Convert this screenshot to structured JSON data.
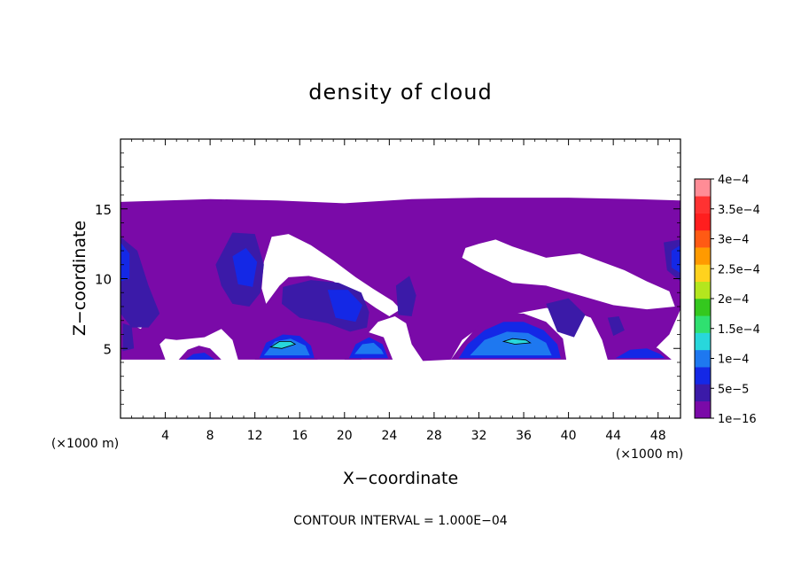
{
  "chart_data": {
    "type": "heatmap",
    "title": "density of cloud",
    "xlabel": "X−coordinate",
    "ylabel": "Z−coordinate",
    "x_unit_left": "(×1000 m)",
    "x_unit_right": "(×1000 m)",
    "footer": "CONTOUR INTERVAL = 1.000E−04",
    "xlim": [
      0,
      50
    ],
    "ylim": [
      0,
      20
    ],
    "x_ticks": [
      4,
      8,
      12,
      16,
      20,
      24,
      28,
      32,
      36,
      40,
      44,
      48
    ],
    "x_tick_labels": [
      "4",
      "8",
      "12",
      "16",
      "20",
      "24",
      "28",
      "32",
      "36",
      "40",
      "44",
      "48"
    ],
    "y_ticks": [
      5,
      10,
      15
    ],
    "y_tick_labels": [
      "5",
      "10",
      "15"
    ],
    "grid": false,
    "colorbar": {
      "placement": "right",
      "levels": [
        1e-16,
        5e-05,
        0.0001,
        0.00015,
        0.0002,
        0.00025,
        0.0003,
        0.00035,
        0.0004
      ],
      "labels": [
        "1e−16",
        "5e−5",
        "1e−4",
        "1.5e−4",
        "2e−4",
        "2.5e−4",
        "3e−4",
        "3.5e−4",
        "4e−4"
      ],
      "colors": [
        "#7a0aa8",
        "#3b1aa8",
        "#1428e6",
        "#1e78f0",
        "#28d7dc",
        "#2fe070",
        "#34c81e",
        "#b4e61e",
        "#ffd21e",
        "#ff9a00",
        "#ff5a14",
        "#ff1e1e",
        "#ff3232",
        "#ff8c96"
      ]
    },
    "regions": [
      {
        "name": "cloud-layer",
        "level": 1,
        "points": [
          [
            0,
            15.5
          ],
          [
            8,
            15.7
          ],
          [
            14,
            15.6
          ],
          [
            20,
            15.4
          ],
          [
            26,
            15.7
          ],
          [
            32,
            15.8
          ],
          [
            40,
            15.8
          ],
          [
            46,
            15.7
          ],
          [
            50,
            15.6
          ],
          [
            50,
            7.8
          ],
          [
            49,
            6
          ],
          [
            48,
            5.2
          ],
          [
            47,
            4.3
          ],
          [
            43.5,
            4.2
          ],
          [
            43,
            5.6
          ],
          [
            42,
            7.2
          ],
          [
            40,
            7.8
          ],
          [
            38,
            7.9
          ],
          [
            36,
            7.6
          ],
          [
            34,
            7.2
          ],
          [
            32,
            6.5
          ],
          [
            30.5,
            5.6
          ],
          [
            29.5,
            4.2
          ],
          [
            27,
            4.1
          ],
          [
            26,
            5.3
          ],
          [
            25.5,
            6.8
          ],
          [
            24.5,
            7.3
          ],
          [
            23,
            6.9
          ],
          [
            22,
            6
          ],
          [
            21.5,
            4.2
          ],
          [
            10.5,
            4.2
          ],
          [
            10,
            5.6
          ],
          [
            9,
            6.4
          ],
          [
            7.5,
            5.8
          ],
          [
            5,
            5.6
          ],
          [
            4,
            5.7
          ],
          [
            3.5,
            5.3
          ],
          [
            4,
            4.2
          ],
          [
            0,
            4.2
          ]
        ]
      },
      {
        "name": "clear-gap",
        "level": 0,
        "points": [
          [
            13.5,
            13
          ],
          [
            15,
            13.2
          ],
          [
            17,
            12.4
          ],
          [
            19,
            11.3
          ],
          [
            21,
            10.1
          ],
          [
            22.5,
            9.3
          ],
          [
            24.3,
            8.4
          ],
          [
            25,
            7.8
          ],
          [
            24,
            7.3
          ],
          [
            22.8,
            7.9
          ],
          [
            21,
            8.9
          ],
          [
            19,
            9.8
          ],
          [
            16.8,
            10.2
          ],
          [
            15,
            10.1
          ],
          [
            14.2,
            9.5
          ],
          [
            13,
            8.2
          ],
          [
            12.6,
            9.3
          ],
          [
            12.8,
            11.2
          ]
        ]
      },
      {
        "name": "clear-gap",
        "level": 0,
        "points": [
          [
            32,
            12.5
          ],
          [
            33.5,
            12.8
          ],
          [
            35,
            12.3
          ],
          [
            38,
            11.5
          ],
          [
            41,
            11.8
          ],
          [
            43,
            11.2
          ],
          [
            45,
            10.6
          ],
          [
            47,
            9.8
          ],
          [
            49,
            9.1
          ],
          [
            49.5,
            8
          ],
          [
            47,
            7.8
          ],
          [
            44,
            8.1
          ],
          [
            41,
            8.8
          ],
          [
            38,
            9.5
          ],
          [
            35,
            9.7
          ],
          [
            32.5,
            10.6
          ],
          [
            30.5,
            11.5
          ],
          [
            30.8,
            12.2
          ]
        ]
      },
      {
        "name": "clear-gap",
        "level": 0,
        "points": [
          [
            0.3,
            8.1
          ],
          [
            2,
            8.3
          ],
          [
            2.6,
            7.2
          ],
          [
            1.8,
            6.4
          ],
          [
            0.7,
            6.8
          ]
        ]
      },
      {
        "name": "band",
        "level": 1.6,
        "points": [
          [
            0,
            13
          ],
          [
            1.5,
            12
          ],
          [
            2.5,
            9.5
          ],
          [
            3.5,
            7.5
          ],
          [
            2.5,
            6.5
          ],
          [
            1,
            6.5
          ],
          [
            0,
            7.5
          ]
        ]
      },
      {
        "name": "band",
        "level": 1.6,
        "points": [
          [
            8.5,
            11
          ],
          [
            10,
            13.3
          ],
          [
            12,
            13.2
          ],
          [
            12.8,
            11
          ],
          [
            12.5,
            9
          ],
          [
            11.5,
            8
          ],
          [
            10,
            8.2
          ],
          [
            9,
            9.5
          ]
        ]
      },
      {
        "name": "band",
        "level": 1.6,
        "points": [
          [
            14.5,
            9.4
          ],
          [
            17,
            9.9
          ],
          [
            19.5,
            9.7
          ],
          [
            21.5,
            9
          ],
          [
            22.2,
            7.6
          ],
          [
            22,
            6.5
          ],
          [
            20.5,
            6.2
          ],
          [
            18.5,
            6.8
          ],
          [
            16,
            7.2
          ],
          [
            14.4,
            8.2
          ]
        ]
      },
      {
        "name": "band",
        "level": 1.6,
        "points": [
          [
            24.6,
            9.5
          ],
          [
            25.8,
            10.2
          ],
          [
            26.4,
            8.8
          ],
          [
            26,
            7.3
          ],
          [
            24.8,
            7.4
          ]
        ]
      },
      {
        "name": "band",
        "level": 1.6,
        "points": [
          [
            38,
            8.2
          ],
          [
            40,
            8.6
          ],
          [
            41.5,
            7.4
          ],
          [
            40.5,
            5.8
          ],
          [
            39,
            6.2
          ]
        ]
      },
      {
        "name": "band",
        "level": 1.6,
        "points": [
          [
            48.5,
            12.6
          ],
          [
            50,
            12.8
          ],
          [
            50,
            9.8
          ],
          [
            48.8,
            10.6
          ]
        ]
      },
      {
        "name": "core",
        "level": 2,
        "points": [
          [
            10,
            11.6
          ],
          [
            11.2,
            12.2
          ],
          [
            12.2,
            11.2
          ],
          [
            11.8,
            9.4
          ],
          [
            10.5,
            9.6
          ]
        ]
      },
      {
        "name": "core",
        "level": 2,
        "points": [
          [
            18.5,
            9.2
          ],
          [
            20.3,
            9.2
          ],
          [
            21.6,
            8.1
          ],
          [
            21,
            6.9
          ],
          [
            19.2,
            7.2
          ]
        ]
      },
      {
        "name": "core",
        "level": 2,
        "points": [
          [
            0,
            12.6
          ],
          [
            0.8,
            11.8
          ],
          [
            0.8,
            10
          ],
          [
            0,
            9.8
          ]
        ]
      },
      {
        "name": "core",
        "level": 2,
        "points": [
          [
            49.2,
            12
          ],
          [
            50,
            12.4
          ],
          [
            50,
            10.4
          ],
          [
            49.2,
            10.8
          ]
        ]
      },
      {
        "name": "dome",
        "level": 1,
        "points": [
          [
            5.2,
            4.2
          ],
          [
            6,
            4.9
          ],
          [
            7,
            5.2
          ],
          [
            8,
            5
          ],
          [
            9,
            4.2
          ]
        ]
      },
      {
        "name": "dome",
        "level": 2,
        "points": [
          [
            5.8,
            4.2
          ],
          [
            6.5,
            4.6
          ],
          [
            7.5,
            4.7
          ],
          [
            8.4,
            4.2
          ]
        ]
      },
      {
        "name": "dome",
        "level": 1,
        "points": [
          [
            12,
            4.2
          ],
          [
            12.6,
            5.6
          ],
          [
            14,
            6.4
          ],
          [
            16,
            6.4
          ],
          [
            17.2,
            5.6
          ],
          [
            17.6,
            4.2
          ]
        ]
      },
      {
        "name": "dome",
        "level": 2,
        "points": [
          [
            12.4,
            4.3
          ],
          [
            13,
            5.4
          ],
          [
            14.5,
            6
          ],
          [
            16,
            5.9
          ],
          [
            17,
            5.2
          ],
          [
            17.3,
            4.3
          ]
        ]
      },
      {
        "name": "dome",
        "level": 3,
        "points": [
          [
            12.8,
            4.5
          ],
          [
            13.8,
            5.5
          ],
          [
            15.2,
            5.7
          ],
          [
            16.5,
            5.2
          ],
          [
            16.9,
            4.5
          ]
        ]
      },
      {
        "name": "dome",
        "level": 4,
        "points": [
          [
            13.4,
            5.1
          ],
          [
            14.2,
            5.5
          ],
          [
            15.2,
            5.5
          ],
          [
            15.6,
            5.3
          ],
          [
            14.4,
            5
          ]
        ]
      },
      {
        "name": "dome",
        "level": 1,
        "points": [
          [
            20,
            4.2
          ],
          [
            20.5,
            5.5
          ],
          [
            22,
            6.2
          ],
          [
            23.5,
            5.8
          ],
          [
            24.3,
            4.2
          ]
        ]
      },
      {
        "name": "dome",
        "level": 2,
        "points": [
          [
            20.4,
            4.3
          ],
          [
            21,
            5.3
          ],
          [
            22.2,
            5.8
          ],
          [
            23.4,
            5.3
          ],
          [
            23.9,
            4.3
          ]
        ]
      },
      {
        "name": "dome",
        "level": 3,
        "points": [
          [
            20.9,
            4.6
          ],
          [
            21.6,
            5.3
          ],
          [
            22.6,
            5.4
          ],
          [
            23.3,
            4.9
          ],
          [
            23.5,
            4.6
          ]
        ]
      },
      {
        "name": "dome",
        "level": 1,
        "points": [
          [
            29.5,
            4.2
          ],
          [
            30.5,
            5.3
          ],
          [
            32,
            6.7
          ],
          [
            34,
            7.5
          ],
          [
            36,
            7.5
          ],
          [
            38,
            6.9
          ],
          [
            39.5,
            5.7
          ],
          [
            39.8,
            4.2
          ]
        ]
      },
      {
        "name": "dome",
        "level": 2,
        "points": [
          [
            30.2,
            4.3
          ],
          [
            31,
            5.3
          ],
          [
            32.5,
            6.3
          ],
          [
            34.2,
            6.9
          ],
          [
            36,
            6.9
          ],
          [
            37.8,
            6.3
          ],
          [
            39,
            5.3
          ],
          [
            39.3,
            4.3
          ]
        ]
      },
      {
        "name": "dome",
        "level": 3,
        "points": [
          [
            31.2,
            4.5
          ],
          [
            32.5,
            5.6
          ],
          [
            34.5,
            6.2
          ],
          [
            36.4,
            6.1
          ],
          [
            38,
            5.4
          ],
          [
            38.5,
            4.5
          ]
        ]
      },
      {
        "name": "dome",
        "level": 4,
        "points": [
          [
            34.2,
            5.5
          ],
          [
            35,
            5.7
          ],
          [
            36.2,
            5.6
          ],
          [
            36.6,
            5.4
          ],
          [
            35.2,
            5.3
          ]
        ]
      },
      {
        "name": "dome",
        "level": 1,
        "points": [
          [
            43.5,
            4.2
          ],
          [
            44.5,
            5.3
          ],
          [
            46.5,
            5.5
          ],
          [
            48,
            5
          ],
          [
            49.2,
            4.2
          ]
        ]
      },
      {
        "name": "dome",
        "level": 2,
        "points": [
          [
            44.2,
            4.3
          ],
          [
            45.5,
            4.9
          ],
          [
            47,
            5
          ],
          [
            48.2,
            4.6
          ],
          [
            48.6,
            4.3
          ]
        ]
      },
      {
        "name": "dome",
        "level": 1.6,
        "points": [
          [
            43.5,
            7.2
          ],
          [
            44.5,
            7.3
          ],
          [
            45,
            6.3
          ],
          [
            44,
            5.9
          ]
        ]
      },
      {
        "name": "dome",
        "level": 1.6,
        "points": [
          [
            0.2,
            6.8
          ],
          [
            1,
            6.6
          ],
          [
            1.2,
            5
          ],
          [
            0.2,
            4.8
          ]
        ]
      }
    ]
  }
}
